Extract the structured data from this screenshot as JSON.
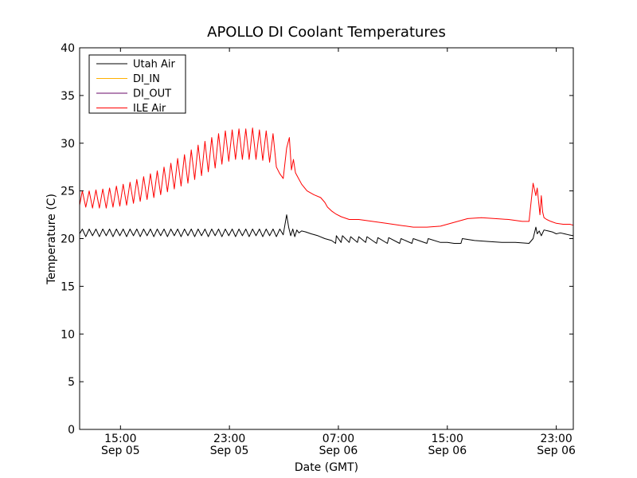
{
  "chart_data": {
    "type": "line",
    "title": "APOLLO DI Coolant Temperatures",
    "xlabel": "Date (GMT)",
    "ylabel": "Temperature (C)",
    "xlim_hours": [
      12.0,
      48.25
    ],
    "ylim": [
      0,
      40
    ],
    "yticks": [
      0,
      5,
      10,
      15,
      20,
      25,
      30,
      35,
      40
    ],
    "xticks": [
      {
        "hour": 15,
        "time": "15:00",
        "date": "Sep 05"
      },
      {
        "hour": 23,
        "time": "23:00",
        "date": "Sep 05"
      },
      {
        "hour": 31,
        "time": "07:00",
        "date": "Sep 06"
      },
      {
        "hour": 39,
        "time": "15:00",
        "date": "Sep 06"
      },
      {
        "hour": 47,
        "time": "23:00",
        "date": "Sep 06"
      }
    ],
    "legend_position": "top-left",
    "series": [
      {
        "name": "Utah Air",
        "color": "#000000",
        "x": [
          12.0,
          12.2,
          12.45,
          12.7,
          12.95,
          13.2,
          13.45,
          13.7,
          13.95,
          14.2,
          14.45,
          14.7,
          14.95,
          15.2,
          15.45,
          15.7,
          15.95,
          16.2,
          16.45,
          16.7,
          16.95,
          17.2,
          17.45,
          17.7,
          17.95,
          18.2,
          18.45,
          18.7,
          18.95,
          19.2,
          19.45,
          19.7,
          19.95,
          20.2,
          20.45,
          20.7,
          20.95,
          21.2,
          21.45,
          21.7,
          21.95,
          22.2,
          22.45,
          22.7,
          22.95,
          23.2,
          23.45,
          23.7,
          23.95,
          24.2,
          24.45,
          24.7,
          24.95,
          25.2,
          25.45,
          25.7,
          25.95,
          26.2,
          26.45,
          26.7,
          26.95,
          27.2,
          27.35,
          27.5,
          27.65,
          27.8,
          27.95,
          28.1,
          28.3,
          28.6,
          29.0,
          29.5,
          30.0,
          30.5,
          30.8,
          30.85,
          31.2,
          31.3,
          31.8,
          31.9,
          32.4,
          32.5,
          33.0,
          33.1,
          33.8,
          33.9,
          34.6,
          34.7,
          35.5,
          35.6,
          36.4,
          36.5,
          37.5,
          37.6,
          38.5,
          39.0,
          39.5,
          40.0,
          40.1,
          41.0,
          42.0,
          43.0,
          44.0,
          45.0,
          45.3,
          45.5,
          45.6,
          45.75,
          45.9,
          46.1,
          46.4,
          46.7,
          47.0,
          47.3,
          47.6,
          47.9,
          48.25
        ],
        "y": [
          20.5,
          21.0,
          20.2,
          21.0,
          20.3,
          21.0,
          20.2,
          21.0,
          20.3,
          21.0,
          20.2,
          21.0,
          20.3,
          21.0,
          20.2,
          21.0,
          20.3,
          21.0,
          20.2,
          21.0,
          20.3,
          21.0,
          20.2,
          21.0,
          20.3,
          21.0,
          20.2,
          21.0,
          20.3,
          21.0,
          20.2,
          21.0,
          20.3,
          21.0,
          20.2,
          21.0,
          20.3,
          21.0,
          20.2,
          21.0,
          20.3,
          21.0,
          20.2,
          21.0,
          20.3,
          21.0,
          20.2,
          21.0,
          20.3,
          21.0,
          20.2,
          21.0,
          20.3,
          21.0,
          20.2,
          21.0,
          20.3,
          21.0,
          20.2,
          21.0,
          20.4,
          22.5,
          21.2,
          20.3,
          21.0,
          20.2,
          20.9,
          20.6,
          20.8,
          20.7,
          20.5,
          20.3,
          20.0,
          19.8,
          19.5,
          20.3,
          19.6,
          20.3,
          19.6,
          20.2,
          19.6,
          20.2,
          19.6,
          20.2,
          19.5,
          20.1,
          19.5,
          20.1,
          19.5,
          20.0,
          19.5,
          20.0,
          19.5,
          20.0,
          19.6,
          19.6,
          19.5,
          19.5,
          20.0,
          19.8,
          19.7,
          19.6,
          19.6,
          19.5,
          20.0,
          21.2,
          20.5,
          20.8,
          20.3,
          20.9,
          20.8,
          20.7,
          20.5,
          20.6,
          20.5,
          20.4,
          20.3
        ]
      },
      {
        "name": "DI_IN",
        "color": "#ffb000",
        "x": [],
        "y": []
      },
      {
        "name": "DI_OUT",
        "color": "#6a0a6a",
        "x": [],
        "y": []
      },
      {
        "name": "ILE Air",
        "color": "#ff0000",
        "x": [
          12.0,
          12.2,
          12.45,
          12.7,
          12.95,
          13.2,
          13.45,
          13.7,
          13.95,
          14.2,
          14.45,
          14.7,
          14.95,
          15.2,
          15.45,
          15.7,
          15.95,
          16.2,
          16.45,
          16.7,
          16.95,
          17.2,
          17.45,
          17.7,
          17.95,
          18.2,
          18.45,
          18.7,
          18.95,
          19.2,
          19.45,
          19.7,
          19.95,
          20.2,
          20.45,
          20.7,
          20.95,
          21.2,
          21.45,
          21.7,
          21.95,
          22.2,
          22.45,
          22.7,
          22.95,
          23.2,
          23.45,
          23.7,
          23.95,
          24.2,
          24.45,
          24.7,
          24.95,
          25.2,
          25.45,
          25.7,
          25.95,
          26.2,
          26.45,
          26.7,
          26.95,
          27.2,
          27.4,
          27.55,
          27.7,
          27.85,
          28.0,
          28.3,
          28.7,
          29.2,
          29.7,
          30.0,
          30.2,
          30.5,
          30.8,
          31.2,
          31.8,
          32.5,
          33.5,
          34.5,
          35.5,
          36.5,
          37.5,
          38.5,
          39.5,
          40.5,
          41.5,
          42.5,
          43.5,
          44.5,
          45.0,
          45.3,
          45.5,
          45.6,
          45.8,
          45.9,
          46.0,
          46.1,
          46.3,
          46.6,
          47.0,
          47.5,
          48.0,
          48.25
        ],
        "y": [
          23.5,
          25.0,
          23.3,
          25.0,
          23.2,
          25.1,
          23.2,
          25.2,
          23.2,
          25.3,
          23.3,
          25.5,
          23.4,
          25.7,
          23.5,
          25.9,
          23.7,
          26.2,
          23.9,
          26.5,
          24.1,
          26.8,
          24.3,
          27.1,
          24.6,
          27.5,
          24.9,
          27.9,
          25.2,
          28.4,
          25.5,
          28.8,
          25.8,
          29.3,
          26.2,
          29.8,
          26.6,
          30.2,
          27.0,
          30.6,
          27.4,
          31.0,
          27.8,
          31.3,
          28.1,
          31.4,
          28.3,
          31.5,
          28.3,
          31.5,
          28.3,
          31.6,
          28.3,
          31.4,
          28.2,
          31.3,
          28.0,
          31.0,
          27.5,
          26.8,
          26.3,
          29.5,
          30.6,
          27.2,
          28.3,
          26.9,
          26.5,
          25.7,
          25.0,
          24.6,
          24.3,
          23.8,
          23.3,
          22.9,
          22.6,
          22.3,
          22.0,
          22.0,
          21.8,
          21.6,
          21.4,
          21.2,
          21.2,
          21.3,
          21.7,
          22.1,
          22.2,
          22.1,
          22.0,
          21.8,
          21.8,
          25.8,
          24.5,
          25.3,
          22.5,
          24.5,
          22.8,
          22.2,
          22.0,
          21.8,
          21.6,
          21.5,
          21.5,
          21.4
        ]
      }
    ]
  }
}
